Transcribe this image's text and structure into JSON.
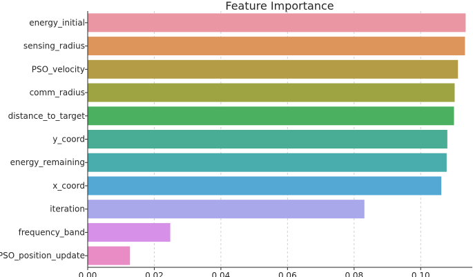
{
  "chart_data": {
    "type": "bar",
    "orientation": "horizontal",
    "title": "Feature Importance",
    "xlabel": "",
    "ylabel": "",
    "categories": [
      "energy_initial",
      "sensing_radius",
      "PSO_velocity",
      "comm_radius",
      "distance_to_target",
      "y_coord",
      "energy_remaining",
      "x_coord",
      "iteration",
      "frequency_band",
      "PSO_position_update"
    ],
    "values": [
      0.1135,
      0.1133,
      0.1112,
      0.1102,
      0.11,
      0.108,
      0.1078,
      0.1062,
      0.0831,
      0.0248,
      0.0127
    ],
    "colors": [
      "#ea96a3",
      "#de955b",
      "#b39c45",
      "#9da441",
      "#4bb160",
      "#49ad96",
      "#4aadad",
      "#54a9d4",
      "#a8a8eb",
      "#d690e8",
      "#e98cc5"
    ],
    "xlim": [
      0,
      0.1155
    ],
    "xticks": [
      0.0,
      0.02,
      0.04,
      0.06,
      0.08,
      0.1
    ],
    "xtick_labels": [
      "0.00",
      "0.02",
      "0.04",
      "0.06",
      "0.08",
      "0.10"
    ],
    "grid": "vertical dashed",
    "legend": "none"
  }
}
